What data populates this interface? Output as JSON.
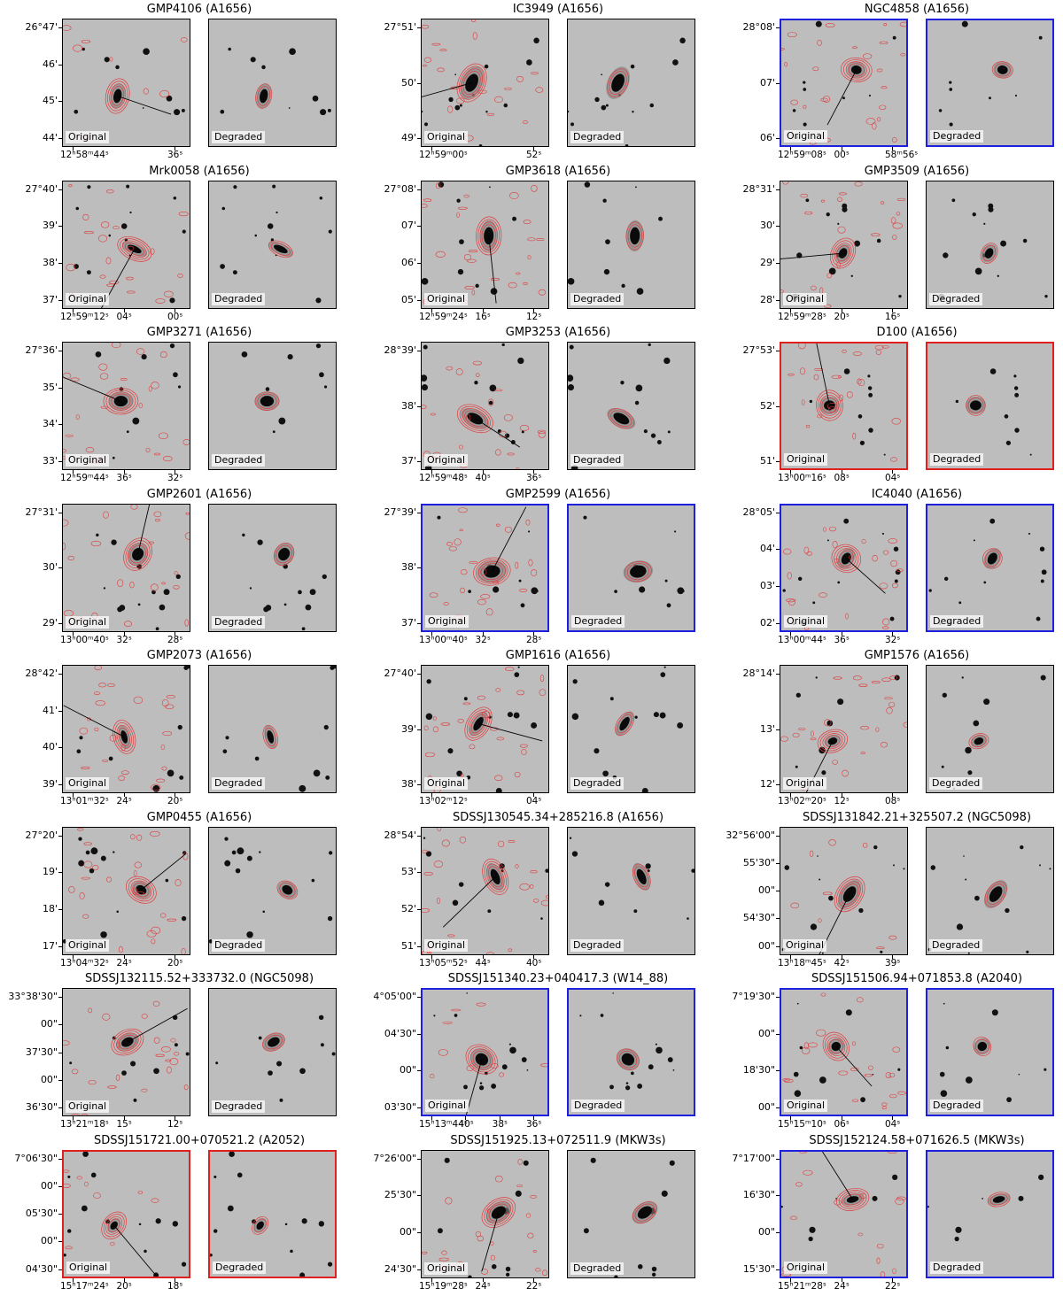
{
  "image_tags": {
    "original": "Original",
    "degraded": "Degraded"
  },
  "colors": {
    "contour": "#e03a3a",
    "blue_frame": "#1f1fe0",
    "red_frame": "#e01f1f"
  },
  "galaxies": [
    {
      "title": "GMP4106 (A1656)",
      "frame": "black",
      "yticks": [
        "26°47'",
        "46'",
        "45'",
        "44'"
      ],
      "xticks": [
        "12ʰ58ᵐ44ˢ",
        "36ˢ"
      ]
    },
    {
      "title": "IC3949 (A1656)",
      "frame": "black",
      "yticks": [
        "27°51'",
        "50'",
        "49'"
      ],
      "xticks": [
        "12ʰ59ᵐ00ˢ",
        "52ˢ"
      ]
    },
    {
      "title": "NGC4858 (A1656)",
      "frame": "blue",
      "yticks": [
        "28°08'",
        "07'",
        "06'"
      ],
      "xticks": [
        "12ʰ59ᵐ08ˢ",
        "00ˢ",
        "58ᵐ56ˢ"
      ]
    },
    {
      "title": "Mrk0058 (A1656)",
      "frame": "black",
      "yticks": [
        "27°40'",
        "39'",
        "38'",
        "37'"
      ],
      "xticks": [
        "12ʰ59ᵐ12ˢ",
        "04ˢ",
        "00ˢ"
      ]
    },
    {
      "title": "GMP3618 (A1656)",
      "frame": "black",
      "yticks": [
        "27°08'",
        "07'",
        "06'",
        "05'"
      ],
      "xticks": [
        "12ʰ59ᵐ24ˢ",
        "16ˢ",
        "12ˢ"
      ]
    },
    {
      "title": "GMP3509 (A1656)",
      "frame": "black",
      "yticks": [
        "28°31'",
        "30'",
        "29'",
        "28'"
      ],
      "xticks": [
        "12ʰ59ᵐ28ˢ",
        "20ˢ",
        "16ˢ"
      ]
    },
    {
      "title": "GMP3271 (A1656)",
      "frame": "black",
      "yticks": [
        "27°36'",
        "35'",
        "34'",
        "33'"
      ],
      "xticks": [
        "12ʰ59ᵐ44ˢ",
        "36ˢ",
        "32ˢ"
      ]
    },
    {
      "title": "GMP3253 (A1656)",
      "frame": "black",
      "yticks": [
        "28°39'",
        "38'",
        "37'"
      ],
      "xticks": [
        "12ʰ59ᵐ48ˢ",
        "40ˢ",
        "36ˢ"
      ]
    },
    {
      "title": "D100 (A1656)",
      "frame": "red",
      "yticks": [
        "27°53'",
        "52'",
        "51'"
      ],
      "xticks": [
        "13ʰ00ᵐ16ˢ",
        "08ˢ",
        "04ˢ"
      ]
    },
    {
      "title": "GMP2601 (A1656)",
      "frame": "black",
      "yticks": [
        "27°31'",
        "30'",
        "29'"
      ],
      "xticks": [
        "13ʰ00ᵐ40ˢ",
        "32ˢ",
        "28ˢ"
      ]
    },
    {
      "title": "GMP2599 (A1656)",
      "frame": "blue",
      "yticks": [
        "27°39'",
        "38'",
        "37'"
      ],
      "xticks": [
        "13ʰ00ᵐ40ˢ",
        "32ˢ",
        "28ˢ"
      ]
    },
    {
      "title": "IC4040 (A1656)",
      "frame": "blue",
      "yticks": [
        "28°05'",
        "04'",
        "03'",
        "02'"
      ],
      "xticks": [
        "13ʰ00ᵐ44ˢ",
        "36ˢ",
        "32ˢ"
      ]
    },
    {
      "title": "GMP2073 (A1656)",
      "frame": "black",
      "yticks": [
        "28°42'",
        "41'",
        "40'",
        "39'"
      ],
      "xticks": [
        "13ʰ01ᵐ32ˢ",
        "24ˢ",
        "20ˢ"
      ]
    },
    {
      "title": "GMP1616 (A1656)",
      "frame": "black",
      "yticks": [
        "27°40'",
        "39'",
        "38'"
      ],
      "xticks": [
        "13ʰ02ᵐ12ˢ",
        "04ˢ"
      ]
    },
    {
      "title": "GMP1576 (A1656)",
      "frame": "black",
      "yticks": [
        "28°14'",
        "13'",
        "12'"
      ],
      "xticks": [
        "13ʰ02ᵐ20ˢ",
        "12ˢ",
        "08ˢ"
      ]
    },
    {
      "title": "GMP0455 (A1656)",
      "frame": "black",
      "yticks": [
        "27°20'",
        "19'",
        "18'",
        "17'"
      ],
      "xticks": [
        "13ʰ04ᵐ32ˢ",
        "24ˢ",
        "20ˢ"
      ]
    },
    {
      "title": "SDSSJ130545.34+285216.8 (A1656)",
      "frame": "black",
      "yticks": [
        "28°54'",
        "53'",
        "52'",
        "51'"
      ],
      "xticks": [
        "13ʰ05ᵐ52ˢ",
        "44ˢ",
        "40ˢ"
      ]
    },
    {
      "title": "SDSSJ131842.21+325507.2 (NGC5098)",
      "frame": "black",
      "yticks": [
        "32°56'00\"",
        "55'30\"",
        "00\"",
        "54'30\"",
        "00\""
      ],
      "xticks": [
        "13ʰ18ᵐ45ˢ",
        "42ˢ",
        "39ˢ"
      ]
    },
    {
      "title": "SDSSJ132115.52+333732.0 (NGC5098)",
      "frame": "black",
      "yticks": [
        "33°38'30\"",
        "00\"",
        "37'30\"",
        "00\"",
        "36'30\""
      ],
      "xticks": [
        "13ʰ21ᵐ18ˢ",
        "15ˢ",
        "12ˢ"
      ]
    },
    {
      "title": "SDSSJ151340.23+040417.3 (W14_88)",
      "frame": "blue",
      "yticks": [
        "4°05'00\"",
        "04'30\"",
        "00\"",
        "03'30\""
      ],
      "xticks": [
        "15ʰ13ᵐ44ˢ",
        "40ˢ",
        "38ˢ",
        "36ˢ"
      ]
    },
    {
      "title": "SDSSJ151506.94+071853.8 (A2040)",
      "frame": "blue",
      "yticks": [
        "7°19'30\"",
        "00\"",
        "18'30\"",
        "00\""
      ],
      "xticks": [
        "15ʰ15ᵐ10ˢ",
        "06ˢ",
        "04ˢ"
      ]
    },
    {
      "title": "SDSSJ151721.00+070521.2 (A2052)",
      "frame": "red",
      "yticks": [
        "7°06'30\"",
        "00\"",
        "05'30\"",
        "00\"",
        "04'30\""
      ],
      "xticks": [
        "15ʰ17ᵐ24ˢ",
        "20ˢ",
        "18ˢ"
      ]
    },
    {
      "title": "SDSSJ151925.13+072511.9 (MKW3s)",
      "frame": "black",
      "yticks": [
        "7°26'00\"",
        "25'30\"",
        "00\"",
        "24'30\""
      ],
      "xticks": [
        "15ʰ19ᵐ28ˢ",
        "24ˢ",
        "22ˢ"
      ]
    },
    {
      "title": "SDSSJ152124.58+071626.5 (MKW3s)",
      "frame": "blue",
      "yticks": [
        "7°17'00\"",
        "16'30\"",
        "00\"",
        "15'30\""
      ],
      "xticks": [
        "15ʰ21ᵐ28ˢ",
        "24ˢ",
        "22ˢ"
      ]
    }
  ]
}
